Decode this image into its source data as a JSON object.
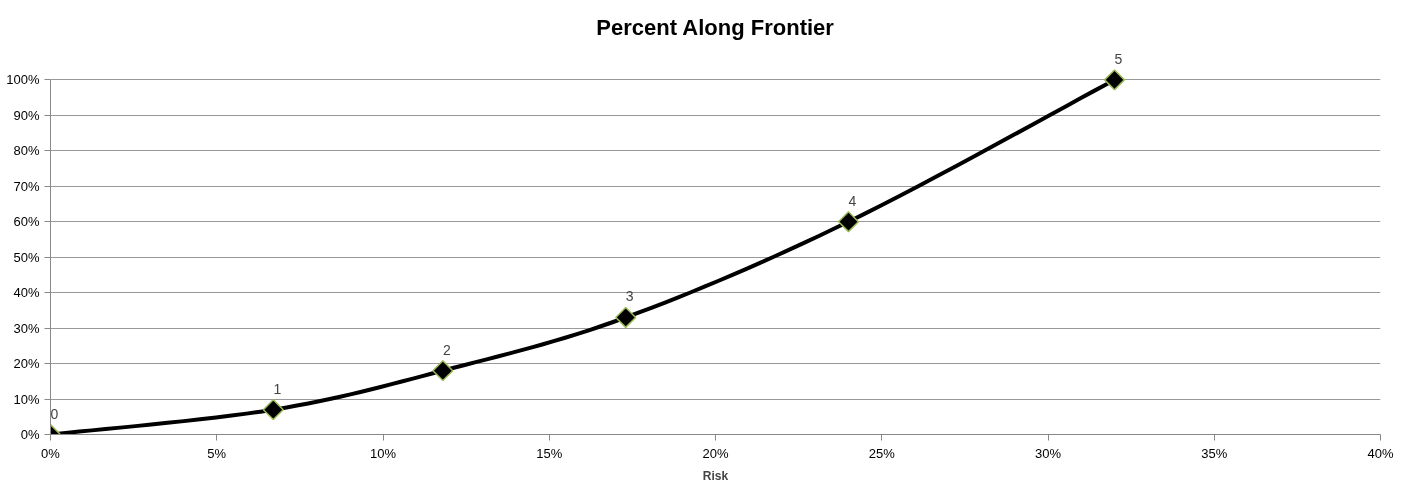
{
  "chart_data": {
    "type": "line",
    "title": "Percent Along Frontier",
    "xlabel": "Risk",
    "x": [
      0,
      6.7,
      11.8,
      17.3,
      24.0,
      32.0
    ],
    "series": [
      {
        "color": "#000000",
        "values": [
          0,
          7,
          18,
          33,
          60,
          100
        ]
      }
    ],
    "marker": "diamond",
    "line_style": "solid",
    "grid": "y",
    "xlim": [
      0,
      40
    ],
    "ylim": [
      0,
      100
    ],
    "xticks": [
      {
        "value": 0,
        "label": "0%"
      },
      {
        "value": 5,
        "label": "5%"
      },
      {
        "value": 10,
        "label": "10%"
      },
      {
        "value": 15,
        "label": "15%"
      },
      {
        "value": 20,
        "label": "20%"
      },
      {
        "value": 25,
        "label": "25%"
      },
      {
        "value": 30,
        "label": "30%"
      },
      {
        "value": 35,
        "label": "35%"
      },
      {
        "value": 40,
        "label": "40%"
      }
    ],
    "yticks": [
      {
        "value": 0,
        "label": "0%"
      },
      {
        "value": 10,
        "label": "10%"
      },
      {
        "value": 20,
        "label": "20%"
      },
      {
        "value": 30,
        "label": "30%"
      },
      {
        "value": 40,
        "label": "40%"
      },
      {
        "value": 50,
        "label": "50%"
      },
      {
        "value": 60,
        "label": "60%"
      },
      {
        "value": 70,
        "label": "70%"
      },
      {
        "value": 80,
        "label": "80%"
      },
      {
        "value": 90,
        "label": "90%"
      },
      {
        "value": 100,
        "label": "100%"
      }
    ],
    "annotations": [
      {
        "text": "0",
        "x": 0,
        "y": 0
      },
      {
        "text": "1",
        "x": 6.7,
        "y": 7
      },
      {
        "text": "2",
        "x": 11.8,
        "y": 18
      },
      {
        "text": "3",
        "x": 17.3,
        "y": 33
      },
      {
        "text": "4",
        "x": 24.0,
        "y": 60
      },
      {
        "text": "5",
        "x": 32.0,
        "y": 100
      }
    ]
  }
}
